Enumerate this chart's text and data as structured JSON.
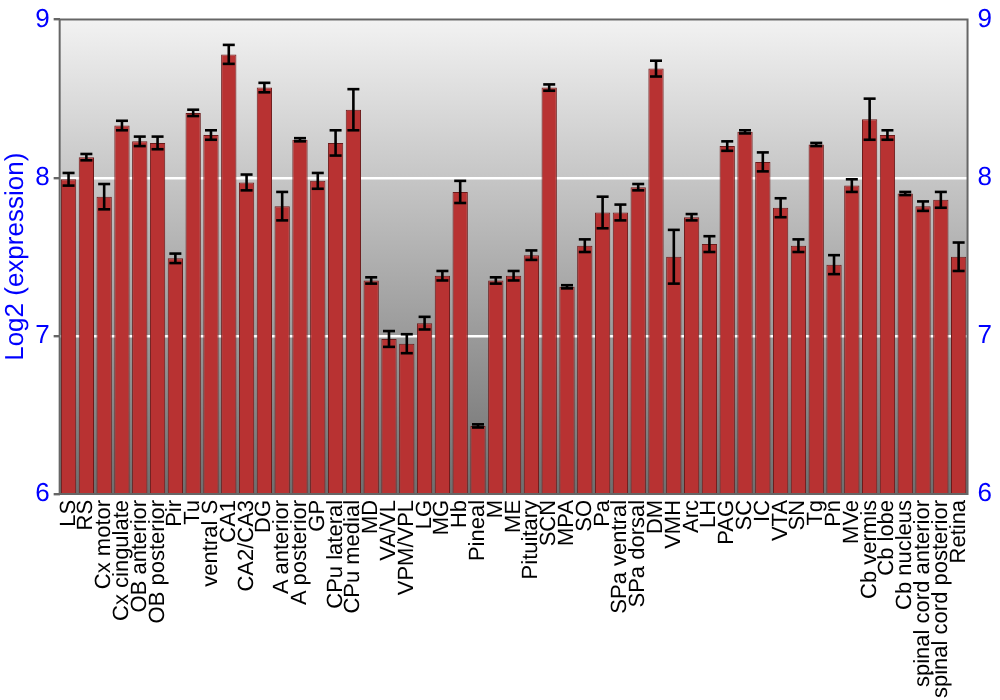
{
  "chart_data": {
    "type": "bar",
    "ylabel": "Log2 (expression)",
    "categories": [
      "LS",
      "RS",
      "Cx motor",
      "Cx cingulate",
      "OB anterior",
      "OB posterior",
      "Pir",
      "Tu",
      "ventral S",
      "CA1",
      "CA2/CA3",
      "DG",
      "A anterior",
      "A posterior",
      "GP",
      "CPu lateral",
      "CPu medial",
      "MD",
      "VA/VL",
      "VPM/VPL",
      "LG",
      "MG",
      "Hb",
      "Pineal",
      "M",
      "ME",
      "Pituitary",
      "SCN",
      "MPA",
      "SO",
      "Pa",
      "SPa ventral",
      "SPa dorsal",
      "DM",
      "VMH",
      "Arc",
      "LH",
      "PAG",
      "SC",
      "IC",
      "VTA",
      "SN",
      "Tg",
      "Pn",
      "MVe",
      "Cb vermis",
      "Cb lobe",
      "Cb nucleus",
      "spinal cord anterior",
      "spinal cord posterior",
      "Retina"
    ],
    "values": [
      7.99,
      8.13,
      7.88,
      8.33,
      8.23,
      8.22,
      7.49,
      8.41,
      8.27,
      8.78,
      7.97,
      8.57,
      7.82,
      8.24,
      7.98,
      8.22,
      8.43,
      7.35,
      6.98,
      6.95,
      7.08,
      7.38,
      7.91,
      6.43,
      7.35,
      7.38,
      7.51,
      8.57,
      7.31,
      7.57,
      7.78,
      7.78,
      7.94,
      8.69,
      7.5,
      7.75,
      7.58,
      8.2,
      8.29,
      8.1,
      7.81,
      7.57,
      8.21,
      7.45,
      7.95,
      8.37,
      8.27,
      7.9,
      7.82,
      7.86,
      7.5
    ],
    "errors": [
      0.04,
      0.02,
      0.08,
      0.03,
      0.03,
      0.04,
      0.03,
      0.02,
      0.03,
      0.06,
      0.05,
      0.03,
      0.09,
      0.01,
      0.05,
      0.08,
      0.13,
      0.02,
      0.05,
      0.06,
      0.04,
      0.03,
      0.07,
      0.01,
      0.02,
      0.03,
      0.03,
      0.02,
      0.01,
      0.04,
      0.1,
      0.05,
      0.02,
      0.05,
      0.17,
      0.02,
      0.05,
      0.03,
      0.01,
      0.06,
      0.06,
      0.04,
      0.01,
      0.06,
      0.04,
      0.13,
      0.03,
      0.01,
      0.03,
      0.05,
      0.09
    ],
    "color": "#b83232",
    "ylim": [
      6,
      9
    ],
    "yticks": [
      6,
      7,
      8,
      9
    ],
    "y2lim": [
      6,
      9
    ],
    "y2ticks": [
      6,
      7,
      8,
      9
    ],
    "grid": "y"
  }
}
